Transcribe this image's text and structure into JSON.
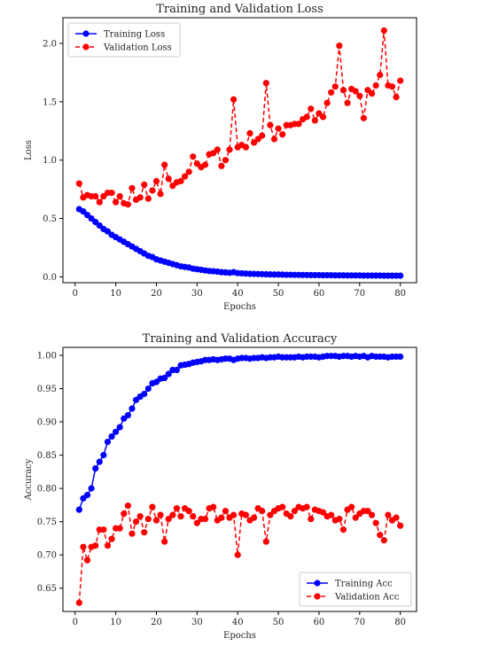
{
  "chart_data": [
    {
      "type": "line",
      "title": "Training and Validation Loss",
      "xlabel": "Epochs",
      "ylabel": "Loss",
      "xlim": [
        -3,
        84
      ],
      "ylim": [
        -0.05,
        2.22
      ],
      "xticks": [
        0,
        10,
        20,
        30,
        40,
        50,
        60,
        70,
        80
      ],
      "yticks": [
        0.0,
        0.5,
        1.0,
        1.5,
        2.0
      ],
      "ytick_labels": [
        "0.0",
        "0.5",
        "1.0",
        "1.5",
        "2.0"
      ],
      "legend": "top-left",
      "grid": false,
      "x": [
        1,
        2,
        3,
        4,
        5,
        6,
        7,
        8,
        9,
        10,
        11,
        12,
        13,
        14,
        15,
        16,
        17,
        18,
        19,
        20,
        21,
        22,
        23,
        24,
        25,
        26,
        27,
        28,
        29,
        30,
        31,
        32,
        33,
        34,
        35,
        36,
        37,
        38,
        39,
        40,
        41,
        42,
        43,
        44,
        45,
        46,
        47,
        48,
        49,
        50,
        51,
        52,
        53,
        54,
        55,
        56,
        57,
        58,
        59,
        60,
        61,
        62,
        63,
        64,
        65,
        66,
        67,
        68,
        69,
        70,
        71,
        72,
        73,
        74,
        75,
        76,
        77,
        78,
        79,
        80
      ],
      "series": [
        {
          "name": "Training Loss",
          "color": "#0000ff",
          "style": "solid",
          "values": [
            0.58,
            0.56,
            0.53,
            0.5,
            0.47,
            0.44,
            0.41,
            0.39,
            0.36,
            0.34,
            0.32,
            0.3,
            0.28,
            0.26,
            0.24,
            0.22,
            0.2,
            0.18,
            0.17,
            0.15,
            0.14,
            0.13,
            0.12,
            0.11,
            0.1,
            0.09,
            0.085,
            0.08,
            0.07,
            0.065,
            0.06,
            0.055,
            0.05,
            0.048,
            0.045,
            0.04,
            0.038,
            0.035,
            0.04,
            0.032,
            0.03,
            0.028,
            0.026,
            0.025,
            0.024,
            0.023,
            0.022,
            0.021,
            0.02,
            0.02,
            0.019,
            0.018,
            0.018,
            0.017,
            0.017,
            0.016,
            0.016,
            0.015,
            0.015,
            0.015,
            0.014,
            0.014,
            0.014,
            0.013,
            0.013,
            0.013,
            0.012,
            0.012,
            0.012,
            0.012,
            0.011,
            0.011,
            0.011,
            0.011,
            0.011,
            0.01,
            0.01,
            0.01,
            0.01,
            0.01
          ]
        },
        {
          "name": "Validation Loss",
          "color": "#ff0000",
          "style": "dashed",
          "values": [
            0.8,
            0.68,
            0.7,
            0.69,
            0.69,
            0.64,
            0.69,
            0.72,
            0.72,
            0.64,
            0.69,
            0.63,
            0.62,
            0.76,
            0.66,
            0.68,
            0.79,
            0.67,
            0.74,
            0.82,
            0.71,
            0.96,
            0.84,
            0.78,
            0.81,
            0.82,
            0.86,
            0.9,
            1.03,
            0.97,
            0.94,
            0.96,
            1.05,
            1.06,
            1.09,
            0.95,
            1.0,
            1.09,
            1.52,
            1.11,
            1.13,
            1.11,
            1.23,
            1.15,
            1.18,
            1.21,
            1.66,
            1.3,
            1.18,
            1.27,
            1.22,
            1.3,
            1.3,
            1.31,
            1.31,
            1.35,
            1.37,
            1.44,
            1.34,
            1.4,
            1.37,
            1.49,
            1.58,
            1.63,
            1.98,
            1.6,
            1.49,
            1.61,
            1.59,
            1.55,
            1.36,
            1.6,
            1.57,
            1.64,
            1.73,
            2.11,
            1.64,
            1.63,
            1.54,
            1.68
          ]
        }
      ]
    },
    {
      "type": "line",
      "title": "Training and Validation Accuracy",
      "xlabel": "Epochs",
      "ylabel": "Accuracy",
      "xlim": [
        -3,
        84
      ],
      "ylim": [
        0.615,
        1.012
      ],
      "xticks": [
        0,
        10,
        20,
        30,
        40,
        50,
        60,
        70,
        80
      ],
      "yticks": [
        0.65,
        0.7,
        0.75,
        0.8,
        0.85,
        0.9,
        0.95,
        1.0
      ],
      "ytick_labels": [
        "0.65",
        "0.70",
        "0.75",
        "0.80",
        "0.85",
        "0.90",
        "0.95",
        "1.00"
      ],
      "legend": "bottom-right",
      "grid": false,
      "x": [
        1,
        2,
        3,
        4,
        5,
        6,
        7,
        8,
        9,
        10,
        11,
        12,
        13,
        14,
        15,
        16,
        17,
        18,
        19,
        20,
        21,
        22,
        23,
        24,
        25,
        26,
        27,
        28,
        29,
        30,
        31,
        32,
        33,
        34,
        35,
        36,
        37,
        38,
        39,
        40,
        41,
        42,
        43,
        44,
        45,
        46,
        47,
        48,
        49,
        50,
        51,
        52,
        53,
        54,
        55,
        56,
        57,
        58,
        59,
        60,
        61,
        62,
        63,
        64,
        65,
        66,
        67,
        68,
        69,
        70,
        71,
        72,
        73,
        74,
        75,
        76,
        77,
        78,
        79,
        80
      ],
      "series": [
        {
          "name": "Training Acc",
          "color": "#0000ff",
          "style": "solid",
          "values": [
            0.768,
            0.785,
            0.79,
            0.8,
            0.83,
            0.84,
            0.85,
            0.87,
            0.878,
            0.885,
            0.892,
            0.905,
            0.91,
            0.92,
            0.933,
            0.938,
            0.942,
            0.95,
            0.958,
            0.96,
            0.965,
            0.966,
            0.972,
            0.978,
            0.978,
            0.985,
            0.986,
            0.987,
            0.989,
            0.99,
            0.991,
            0.993,
            0.993,
            0.994,
            0.993,
            0.994,
            0.995,
            0.995,
            0.993,
            0.995,
            0.996,
            0.996,
            0.995,
            0.996,
            0.996,
            0.997,
            0.996,
            0.997,
            0.997,
            0.998,
            0.997,
            0.997,
            0.997,
            0.997,
            0.998,
            0.997,
            0.998,
            0.998,
            0.998,
            0.997,
            0.998,
            0.999,
            0.999,
            0.999,
            0.998,
            0.999,
            0.999,
            0.998,
            0.999,
            0.998,
            0.999,
            0.997,
            0.999,
            0.998,
            0.998,
            0.998,
            0.997,
            0.998,
            0.998,
            0.998
          ]
        },
        {
          "name": "Validation Acc",
          "color": "#ff0000",
          "style": "dashed",
          "values": [
            0.628,
            0.712,
            0.692,
            0.712,
            0.714,
            0.738,
            0.738,
            0.714,
            0.724,
            0.74,
            0.74,
            0.762,
            0.774,
            0.732,
            0.75,
            0.758,
            0.734,
            0.754,
            0.772,
            0.752,
            0.76,
            0.72,
            0.754,
            0.76,
            0.77,
            0.758,
            0.77,
            0.766,
            0.758,
            0.748,
            0.754,
            0.754,
            0.77,
            0.772,
            0.752,
            0.756,
            0.766,
            0.756,
            0.76,
            0.7,
            0.762,
            0.76,
            0.752,
            0.756,
            0.77,
            0.766,
            0.72,
            0.76,
            0.766,
            0.77,
            0.772,
            0.762,
            0.758,
            0.766,
            0.772,
            0.77,
            0.772,
            0.754,
            0.768,
            0.766,
            0.764,
            0.758,
            0.76,
            0.752,
            0.754,
            0.738,
            0.768,
            0.772,
            0.756,
            0.762,
            0.766,
            0.766,
            0.76,
            0.748,
            0.73,
            0.722,
            0.76,
            0.752,
            0.756,
            0.744
          ]
        }
      ]
    }
  ]
}
